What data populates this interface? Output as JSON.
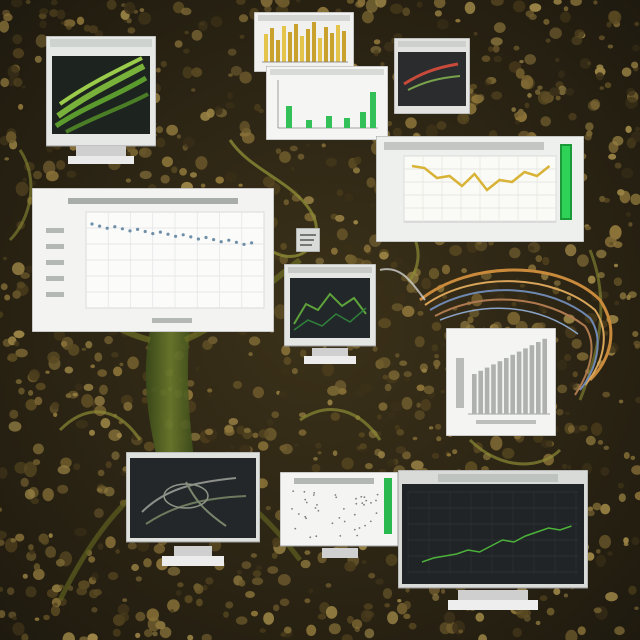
{
  "scene": {
    "description_kind": "illustration",
    "palette": {
      "background": "#2a2314",
      "pebble_dark": "#3b3018",
      "pebble_mid": "#6d5a2c",
      "pebble_light": "#9a8345",
      "vine": "#7d7a2a",
      "wire_orange": "#c98a3c",
      "wire_blue": "#6e88b2",
      "panel_white": "#e9ece9",
      "chart_green": "#34c75a",
      "chart_yellow": "#d7b63a",
      "screen_dark": "#1f2225"
    }
  },
  "panels": [
    {
      "id": "p1",
      "kind": "dark-screen-green-swirls"
    },
    {
      "id": "p2",
      "kind": "yellow-bar-card"
    },
    {
      "id": "p3",
      "kind": "green-bar-card"
    },
    {
      "id": "p4",
      "kind": "dark-photo-card"
    },
    {
      "id": "p5",
      "kind": "yellow-line-chart"
    },
    {
      "id": "p6",
      "kind": "gridded-scatter-chart"
    },
    {
      "id": "p7",
      "kind": "small-note"
    },
    {
      "id": "p8",
      "kind": "dark-monitor-lines"
    },
    {
      "id": "p9",
      "kind": "gray-bar-chart"
    },
    {
      "id": "p10",
      "kind": "dark-monitor-lines"
    },
    {
      "id": "p11",
      "kind": "white-scatter-card"
    },
    {
      "id": "p12",
      "kind": "dark-monitor-green-line"
    }
  ]
}
